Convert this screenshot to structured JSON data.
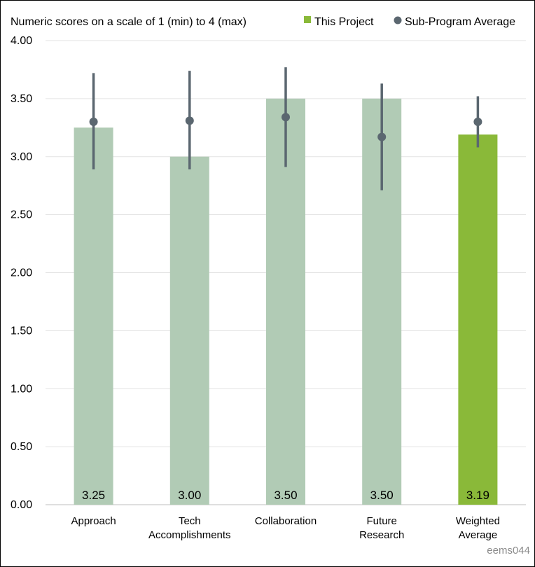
{
  "chart_data": {
    "type": "bar",
    "subtitle": "Numeric scores on a scale of 1 (min) to 4 (max)",
    "categories": [
      [
        "Approach"
      ],
      [
        "Tech",
        "Accomplishments"
      ],
      [
        "Collaboration"
      ],
      [
        "Future",
        "Research"
      ],
      [
        "Weighted",
        "Average"
      ]
    ],
    "series": [
      {
        "name": "This Project",
        "values": [
          3.25,
          3.0,
          3.5,
          3.5,
          3.19
        ],
        "data_labels": [
          "3.25",
          "3.00",
          "3.50",
          "3.50",
          "3.19"
        ],
        "colors": [
          "#b1cbb5",
          "#b1cbb5",
          "#b1cbb5",
          "#b1cbb5",
          "#8ab939"
        ]
      },
      {
        "name": "Sub-Program Average",
        "values": [
          3.3,
          3.31,
          3.34,
          3.17,
          3.3
        ],
        "error_low": [
          2.89,
          2.89,
          2.91,
          2.71,
          3.08
        ],
        "error_high": [
          3.72,
          3.74,
          3.77,
          3.63,
          3.52
        ],
        "color": "#5b6770"
      }
    ],
    "yticks": [
      "0.00",
      "0.50",
      "1.00",
      "1.50",
      "2.00",
      "2.50",
      "3.00",
      "3.50",
      "4.00"
    ],
    "ylim": [
      0,
      4
    ],
    "grid": true,
    "legend_position": "top-right",
    "legend_colors": {
      "This Project": "#8ab939",
      "Sub-Program Average": "#5b6770"
    }
  },
  "watermark": "eems044"
}
